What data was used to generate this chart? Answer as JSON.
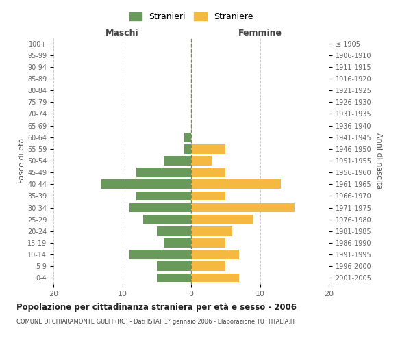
{
  "age_groups": [
    "0-4",
    "5-9",
    "10-14",
    "15-19",
    "20-24",
    "25-29",
    "30-34",
    "35-39",
    "40-44",
    "45-49",
    "50-54",
    "55-59",
    "60-64",
    "65-69",
    "70-74",
    "75-79",
    "80-84",
    "85-89",
    "90-94",
    "95-99",
    "100+"
  ],
  "birth_years": [
    "2001-2005",
    "1996-2000",
    "1991-1995",
    "1986-1990",
    "1981-1985",
    "1976-1980",
    "1971-1975",
    "1966-1970",
    "1961-1965",
    "1956-1960",
    "1951-1955",
    "1946-1950",
    "1941-1945",
    "1936-1940",
    "1931-1935",
    "1926-1930",
    "1921-1925",
    "1916-1920",
    "1911-1915",
    "1906-1910",
    "≤ 1905"
  ],
  "maschi": [
    5,
    5,
    9,
    4,
    5,
    7,
    9,
    8,
    13,
    8,
    4,
    1,
    1,
    0,
    0,
    0,
    0,
    0,
    0,
    0,
    0
  ],
  "femmine": [
    7,
    5,
    7,
    5,
    6,
    9,
    15,
    5,
    13,
    5,
    3,
    5,
    0,
    0,
    0,
    0,
    0,
    0,
    0,
    0,
    0
  ],
  "maschi_color": "#6a9a5b",
  "femmine_color": "#f5b942",
  "title": "Popolazione per cittadinanza straniera per età e sesso - 2006",
  "subtitle": "COMUNE DI CHIARAMONTE GULFI (RG) - Dati ISTAT 1° gennaio 2006 - Elaborazione TUTTITALIA.IT",
  "xlabel_left": "Maschi",
  "xlabel_right": "Femmine",
  "ylabel_left": "Fasce di età",
  "ylabel_right": "Anni di nascita",
  "legend_stranieri": "Stranieri",
  "legend_straniere": "Straniere",
  "xlim": 20,
  "background_color": "#ffffff",
  "grid_color": "#cccccc",
  "bar_height": 0.8
}
